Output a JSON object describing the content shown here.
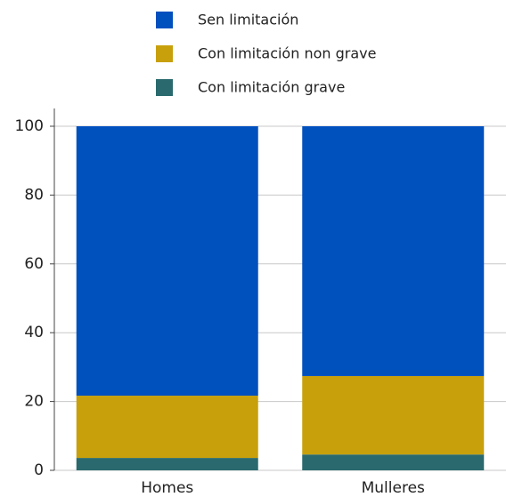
{
  "chart_data": {
    "type": "stacked_bar",
    "categories": [
      "Homes",
      "Mulleres"
    ],
    "series": [
      {
        "name": "Sen limitación",
        "color": "#0050be",
        "values": [
          78.3,
          72.6
        ]
      },
      {
        "name": "Con limitación non grave",
        "color": "#c8a00c",
        "values": [
          18.1,
          22.8
        ]
      },
      {
        "name": "Con limitación grave",
        "color": "#2a6a6e",
        "values": [
          3.6,
          4.6
        ]
      }
    ],
    "ylim": [
      0,
      100
    ],
    "yticks": [
      0,
      20,
      40,
      60,
      80,
      100
    ],
    "grid": true
  }
}
